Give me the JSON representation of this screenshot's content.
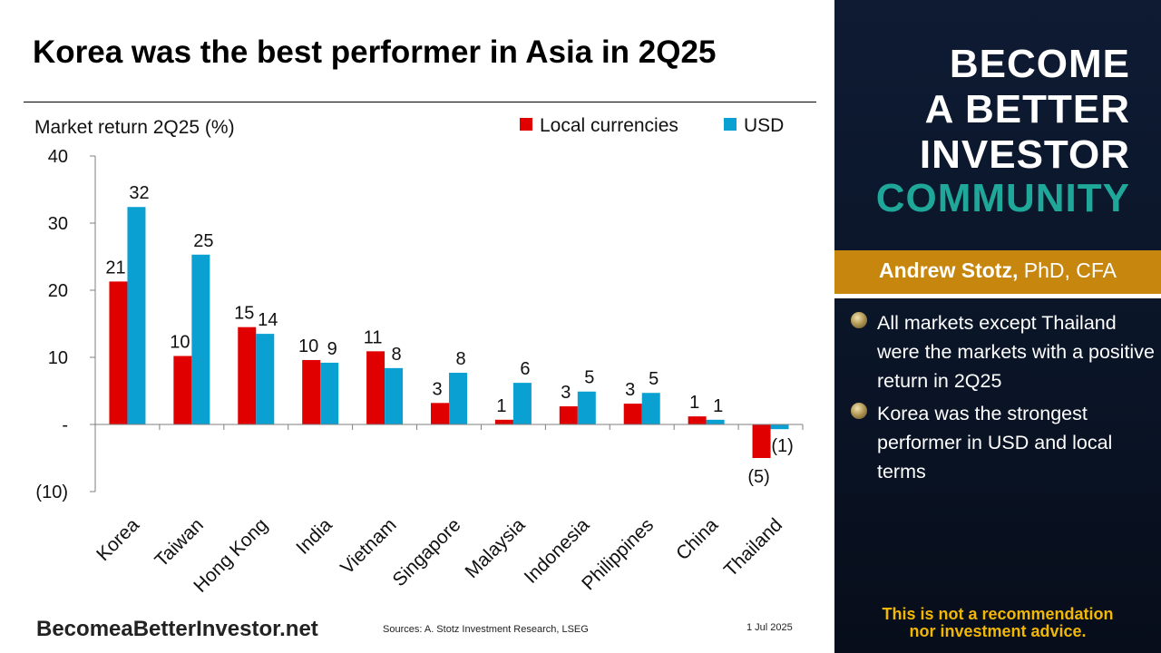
{
  "slide": {
    "title": "Korea was the best performer in Asia in 2Q25",
    "footer_brand": "BecomeaBetterInvestor.net",
    "footer_sources": "Sources: A. Stotz Investment Research, LSEG",
    "footer_date": "1 Jul 2025"
  },
  "side_panel": {
    "brand_lines": [
      "BECOME",
      "A BETTER",
      "INVESTOR",
      "COMMUNITY"
    ],
    "author_name": "Andrew Stotz,",
    "author_credentials": " PhD, CFA",
    "bullets": [
      "All markets except Thailand were the markets with a positive return in 2Q25",
      "Korea was the strongest performer in USD and local terms"
    ],
    "disclaimer": [
      "This is not a recommendation",
      "nor investment advice."
    ]
  },
  "chart_data": {
    "type": "bar",
    "title": "",
    "ylabel": "Market return 2Q25 (%)",
    "xlabel": "",
    "categories": [
      "Korea",
      "Taiwan",
      "Hong Kong",
      "India",
      "Vietnam",
      "Singapore",
      "Malaysia",
      "Indonesia",
      "Philippines",
      "China",
      "Thailand"
    ],
    "series": [
      {
        "name": "Local currencies",
        "color": "#e00000",
        "values": [
          21.3,
          10.2,
          14.5,
          9.6,
          10.9,
          3.2,
          0.7,
          2.7,
          3.1,
          1.2,
          -5.0
        ],
        "labels": [
          "21",
          "10",
          "15",
          "10",
          "11",
          "3",
          "1",
          "3",
          "3",
          "1",
          "(5)"
        ]
      },
      {
        "name": "USD",
        "color": "#0ba0d2",
        "values": [
          32.4,
          25.3,
          13.5,
          9.2,
          8.4,
          7.7,
          6.2,
          4.9,
          4.7,
          0.7,
          -0.7
        ],
        "labels": [
          "32",
          "25",
          "14",
          "9",
          "8",
          "8",
          "6",
          "5",
          "5",
          "1",
          "(1)"
        ]
      }
    ],
    "ylim": [
      -10,
      40
    ],
    "yticks": [
      {
        "value": 40,
        "label": "40"
      },
      {
        "value": 30,
        "label": "30"
      },
      {
        "value": 20,
        "label": "20"
      },
      {
        "value": 10,
        "label": "10"
      },
      {
        "value": 0,
        "label": "-"
      },
      {
        "value": -10,
        "label": "(10)"
      }
    ],
    "legend": "top-right",
    "grid": false
  }
}
